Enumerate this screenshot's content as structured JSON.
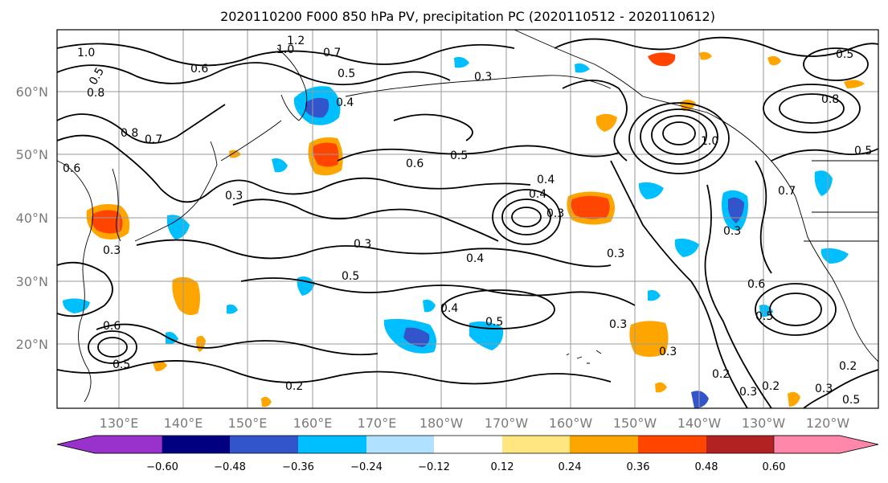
{
  "title": "2020110200 F000 850 hPa PV, precipitation PC (2020110512 - 2020110612)",
  "lat_ticks": [
    "60°N",
    "50°N",
    "40°N",
    "30°N",
    "20°N"
  ],
  "lon_ticks": [
    "130°E",
    "140°E",
    "150°E",
    "160°E",
    "170°E",
    "180°W",
    "170°W",
    "160°W",
    "150°W",
    "140°W",
    "130°W",
    "120°W"
  ],
  "colorbar": {
    "tick_labels": [
      "−0.60",
      "−0.48",
      "−0.36",
      "−0.24",
      "−0.12",
      "0.12",
      "0.24",
      "0.36",
      "0.48",
      "0.60"
    ],
    "colors": [
      "#9932cc",
      "#000080",
      "#3355cc",
      "#00bfff",
      "#b0e2ff",
      "#ffffff",
      "#ffe680",
      "#ffa500",
      "#ff4500",
      "#b22222",
      "#ff88aa"
    ]
  },
  "contour_labels": [
    "1.0",
    "0.5",
    "0.8",
    "0.6",
    "0.7",
    "1.2",
    "1.0",
    "0.7",
    "0.5",
    "0.8",
    "0.3",
    "0.4",
    "0.5",
    "0.6",
    "0.4",
    "0.3",
    "0.3",
    "0.4",
    "0.5",
    "0.3",
    "0.5",
    "0.4",
    "0.3",
    "0.5",
    "0.6",
    "0.3",
    "0.2",
    "0.3",
    "0.2",
    "0.3",
    "0.5",
    "0.3",
    "0.4",
    "0.2",
    "0.6",
    "0.5",
    "0.3",
    "0.7",
    "1.0",
    "0.8",
    "0.5",
    "0.6",
    "0.5",
    "0.3",
    "0.2"
  ]
}
